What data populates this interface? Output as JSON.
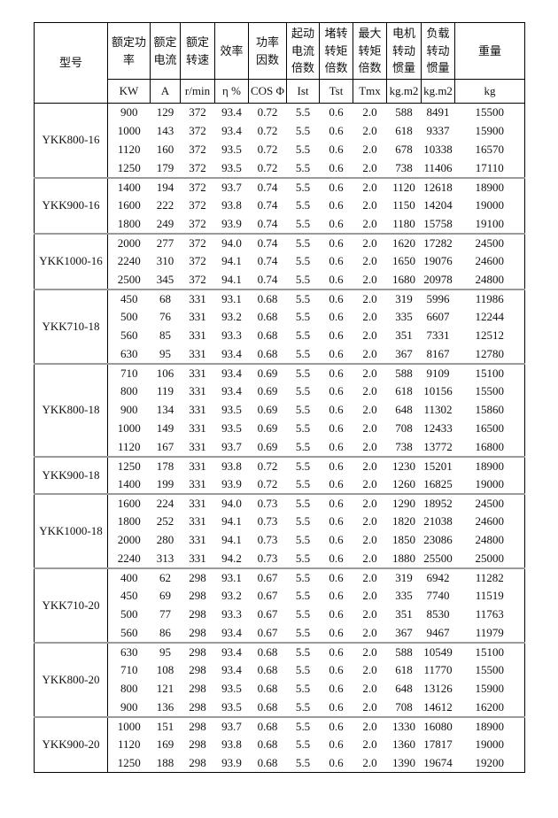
{
  "table": {
    "columns": [
      {
        "label": "型号",
        "unit": ""
      },
      {
        "label": "额定功率",
        "unit": "KW"
      },
      {
        "label": "额定电流",
        "unit": "A"
      },
      {
        "label": "额定转速",
        "unit": "r/min"
      },
      {
        "label": "效率",
        "unit": "η %"
      },
      {
        "label": "功率因数",
        "unit": "COS Φ"
      },
      {
        "label": "起动电流倍数",
        "unit": "Ist"
      },
      {
        "label": "堵转转矩倍数",
        "unit": "Tst"
      },
      {
        "label": "最大转矩倍数",
        "unit": "Tmx"
      },
      {
        "label": "电机转动惯量",
        "unit": "kg.m2"
      },
      {
        "label": "负载转动惯量",
        "unit": "kg.m2"
      },
      {
        "label": "重量",
        "unit": "kg"
      }
    ],
    "groups": [
      {
        "model": "YKK800-16",
        "rows": [
          [
            "900",
            "129",
            "372",
            "93.4",
            "0.72",
            "5.5",
            "0.6",
            "2.0",
            "588",
            "8491",
            "15500"
          ],
          [
            "1000",
            "143",
            "372",
            "93.4",
            "0.72",
            "5.5",
            "0.6",
            "2.0",
            "618",
            "9337",
            "15900"
          ],
          [
            "1120",
            "160",
            "372",
            "93.5",
            "0.72",
            "5.5",
            "0.6",
            "2.0",
            "678",
            "10338",
            "16570"
          ],
          [
            "1250",
            "179",
            "372",
            "93.5",
            "0.72",
            "5.5",
            "0.6",
            "2.0",
            "738",
            "11406",
            "17110"
          ]
        ]
      },
      {
        "model": "YKK900-16",
        "rows": [
          [
            "1400",
            "194",
            "372",
            "93.7",
            "0.74",
            "5.5",
            "0.6",
            "2.0",
            "1120",
            "12618",
            "18900"
          ],
          [
            "1600",
            "222",
            "372",
            "93.8",
            "0.74",
            "5.5",
            "0.6",
            "2.0",
            "1150",
            "14204",
            "19000"
          ],
          [
            "1800",
            "249",
            "372",
            "93.9",
            "0.74",
            "5.5",
            "0.6",
            "2.0",
            "1180",
            "15758",
            "19100"
          ]
        ]
      },
      {
        "model": "YKK1000-16",
        "rows": [
          [
            "2000",
            "277",
            "372",
            "94.0",
            "0.74",
            "5.5",
            "0.6",
            "2.0",
            "1620",
            "17282",
            "24500"
          ],
          [
            "2240",
            "310",
            "372",
            "94.1",
            "0.74",
            "5.5",
            "0.6",
            "2.0",
            "1650",
            "19076",
            "24600"
          ],
          [
            "2500",
            "345",
            "372",
            "94.1",
            "0.74",
            "5.5",
            "0.6",
            "2.0",
            "1680",
            "20978",
            "24800"
          ]
        ]
      },
      {
        "model": "YKK710-18",
        "rows": [
          [
            "450",
            "68",
            "331",
            "93.1",
            "0.68",
            "5.5",
            "0.6",
            "2.0",
            "319",
            "5996",
            "11986"
          ],
          [
            "500",
            "76",
            "331",
            "93.2",
            "0.68",
            "5.5",
            "0.6",
            "2.0",
            "335",
            "6607",
            "12244"
          ],
          [
            "560",
            "85",
            "331",
            "93.3",
            "0.68",
            "5.5",
            "0.6",
            "2.0",
            "351",
            "7331",
            "12512"
          ],
          [
            "630",
            "95",
            "331",
            "93.4",
            "0.68",
            "5.5",
            "0.6",
            "2.0",
            "367",
            "8167",
            "12780"
          ]
        ]
      },
      {
        "model": "YKK800-18",
        "rows": [
          [
            "710",
            "106",
            "331",
            "93.4",
            "0.69",
            "5.5",
            "0.6",
            "2.0",
            "588",
            "9109",
            "15100"
          ],
          [
            "800",
            "119",
            "331",
            "93.4",
            "0.69",
            "5.5",
            "0.6",
            "2.0",
            "618",
            "10156",
            "15500"
          ],
          [
            "900",
            "134",
            "331",
            "93.5",
            "0.69",
            "5.5",
            "0.6",
            "2.0",
            "648",
            "11302",
            "15860"
          ],
          [
            "1000",
            "149",
            "331",
            "93.5",
            "0.69",
            "5.5",
            "0.6",
            "2.0",
            "708",
            "12433",
            "16500"
          ],
          [
            "1120",
            "167",
            "331",
            "93.7",
            "0.69",
            "5.5",
            "0.6",
            "2.0",
            "738",
            "13772",
            "16800"
          ]
        ]
      },
      {
        "model": "YKK900-18",
        "rows": [
          [
            "1250",
            "178",
            "331",
            "93.8",
            "0.72",
            "5.5",
            "0.6",
            "2.0",
            "1230",
            "15201",
            "18900"
          ],
          [
            "1400",
            "199",
            "331",
            "93.9",
            "0.72",
            "5.5",
            "0.6",
            "2.0",
            "1260",
            "16825",
            "19000"
          ]
        ]
      },
      {
        "model": "YKK1000-18",
        "rows": [
          [
            "1600",
            "224",
            "331",
            "94.0",
            "0.73",
            "5.5",
            "0.6",
            "2.0",
            "1290",
            "18952",
            "24500"
          ],
          [
            "1800",
            "252",
            "331",
            "94.1",
            "0.73",
            "5.5",
            "0.6",
            "2.0",
            "1820",
            "21038",
            "24600"
          ],
          [
            "2000",
            "280",
            "331",
            "94.1",
            "0.73",
            "5.5",
            "0.6",
            "2.0",
            "1850",
            "23086",
            "24800"
          ],
          [
            "2240",
            "313",
            "331",
            "94.2",
            "0.73",
            "5.5",
            "0.6",
            "2.0",
            "1880",
            "25500",
            "25000"
          ]
        ]
      },
      {
        "model": "YKK710-20",
        "rows": [
          [
            "400",
            "62",
            "298",
            "93.1",
            "0.67",
            "5.5",
            "0.6",
            "2.0",
            "319",
            "6942",
            "11282"
          ],
          [
            "450",
            "69",
            "298",
            "93.2",
            "0.67",
            "5.5",
            "0.6",
            "2.0",
            "335",
            "7740",
            "11519"
          ],
          [
            "500",
            "77",
            "298",
            "93.3",
            "0.67",
            "5.5",
            "0.6",
            "2.0",
            "351",
            "8530",
            "11763"
          ],
          [
            "560",
            "86",
            "298",
            "93.4",
            "0.67",
            "5.5",
            "0.6",
            "2.0",
            "367",
            "9467",
            "11979"
          ]
        ]
      },
      {
        "model": "YKK800-20",
        "rows": [
          [
            "630",
            "95",
            "298",
            "93.4",
            "0.68",
            "5.5",
            "0.6",
            "2.0",
            "588",
            "10549",
            "15100"
          ],
          [
            "710",
            "108",
            "298",
            "93.4",
            "0.68",
            "5.5",
            "0.6",
            "2.0",
            "618",
            "11770",
            "15500"
          ],
          [
            "800",
            "121",
            "298",
            "93.5",
            "0.68",
            "5.5",
            "0.6",
            "2.0",
            "648",
            "13126",
            "15900"
          ],
          [
            "900",
            "136",
            "298",
            "93.5",
            "0.68",
            "5.5",
            "0.6",
            "2.0",
            "708",
            "14612",
            "16200"
          ]
        ]
      },
      {
        "model": "YKK900-20",
        "rows": [
          [
            "1000",
            "151",
            "298",
            "93.7",
            "0.68",
            "5.5",
            "0.6",
            "2.0",
            "1330",
            "16080",
            "18900"
          ],
          [
            "1120",
            "169",
            "298",
            "93.8",
            "0.68",
            "5.5",
            "0.6",
            "2.0",
            "1360",
            "17817",
            "19000"
          ],
          [
            "1250",
            "188",
            "298",
            "93.9",
            "0.68",
            "5.5",
            "0.6",
            "2.0",
            "1390",
            "19674",
            "19200"
          ]
        ]
      }
    ],
    "colors": {
      "border": "#000000",
      "group_separator": "#9a9a9a",
      "text": "#111111",
      "background": "#ffffff"
    }
  }
}
